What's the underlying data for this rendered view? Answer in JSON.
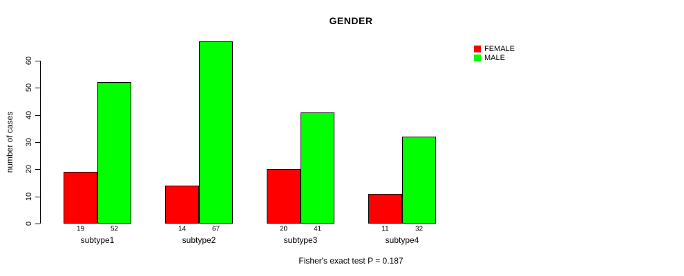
{
  "title": "GENDER",
  "y_axis": {
    "label": "number of cases",
    "ticks": [
      0,
      10,
      20,
      30,
      40,
      50,
      60
    ]
  },
  "legend": [
    {
      "label": "FEMALE",
      "color": "#FF0000"
    },
    {
      "label": "MALE",
      "color": "#00FF00"
    }
  ],
  "footer": "Fisher's exact test P = 0.187",
  "chart_data": {
    "type": "bar",
    "grouped": true,
    "title": "GENDER",
    "xlabel": "",
    "ylabel": "number of cases",
    "ylim": [
      0,
      60
    ],
    "yticks": [
      0,
      10,
      20,
      30,
      40,
      50,
      60
    ],
    "grid": false,
    "legend_position": "top-right-outside",
    "categories": [
      "subtype1",
      "subtype2",
      "subtype3",
      "subtype4"
    ],
    "series": [
      {
        "name": "FEMALE",
        "color": "#FF0000",
        "values": [
          19,
          14,
          20,
          11
        ]
      },
      {
        "name": "MALE",
        "color": "#00FF00",
        "values": [
          52,
          67,
          41,
          32
        ]
      }
    ],
    "bar_value_labels": [
      [
        "19",
        "52"
      ],
      [
        "14",
        "67"
      ],
      [
        "20",
        "41"
      ],
      [
        "11",
        "32"
      ]
    ]
  }
}
